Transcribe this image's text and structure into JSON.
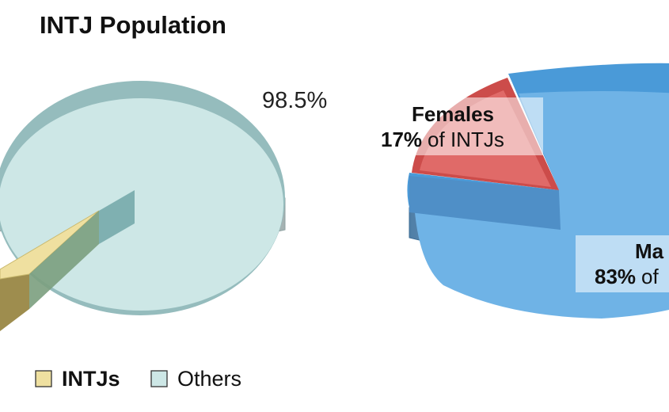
{
  "title": "INTJ Population",
  "chart_data": [
    {
      "type": "pie",
      "categories": [
        "INTJs",
        "Others"
      ],
      "values": [
        1.5,
        98.5
      ],
      "colors": [
        "#efe0a0",
        "#cde7e6"
      ],
      "data_labels": [
        "",
        "98.5%"
      ],
      "legend": {
        "placement": "bottom-left",
        "entries": [
          "INTJs",
          "Others"
        ]
      }
    },
    {
      "type": "pie",
      "categories": [
        "Females",
        "Males"
      ],
      "values": [
        17,
        83
      ],
      "colors": [
        "#e06a68",
        "#6fb3e6"
      ],
      "data_labels": [
        {
          "name": "Females",
          "value": "17%",
          "suffix": "of INTJs"
        },
        {
          "name": "Ma",
          "value": "83%",
          "suffix": "of"
        }
      ]
    }
  ]
}
